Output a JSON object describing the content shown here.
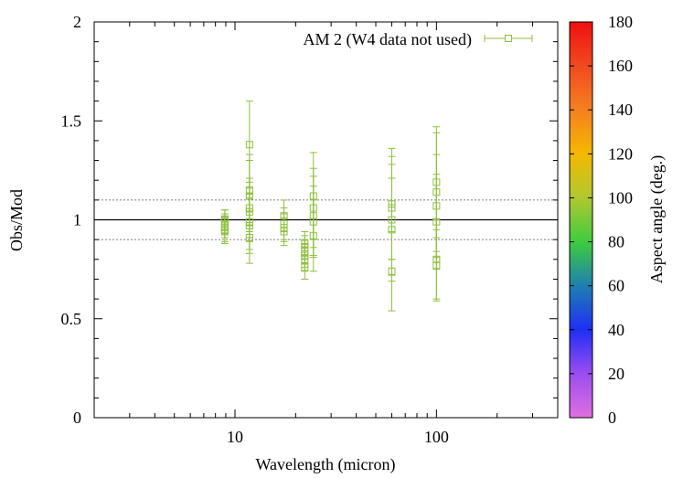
{
  "chart_data": {
    "type": "scatter",
    "title": "",
    "xlabel": "Wavelength (micron)",
    "ylabel": "Obs/Mod",
    "xscale": "log",
    "xlim": [
      2,
      400
    ],
    "ylim": [
      0,
      2
    ],
    "x_tick_labels": [
      {
        "value": 10,
        "label": "10"
      },
      {
        "value": 100,
        "label": "100"
      }
    ],
    "y_tick_labels": [
      {
        "value": 0,
        "label": "0"
      },
      {
        "value": 0.5,
        "label": "0.5"
      },
      {
        "value": 1,
        "label": "1"
      },
      {
        "value": 1.5,
        "label": "1.5"
      },
      {
        "value": 2,
        "label": "2"
      }
    ],
    "reference_lines": [
      {
        "y": 1.0,
        "style": "solid"
      },
      {
        "y": 1.1,
        "style": "dotted"
      },
      {
        "y": 0.9,
        "style": "dotted"
      }
    ],
    "legend_position": "top-right",
    "series": [
      {
        "name": "AM 2 (W4 data not used)",
        "color": "#8fbf3f",
        "marker": "open-square",
        "points": [
          {
            "x": 8.9,
            "y": 1.0,
            "err": 0.05
          },
          {
            "x": 8.9,
            "y": 0.98,
            "err": 0.05
          },
          {
            "x": 8.9,
            "y": 0.96,
            "err": 0.05
          },
          {
            "x": 8.9,
            "y": 0.94,
            "err": 0.05
          },
          {
            "x": 8.9,
            "y": 0.99,
            "err": 0.06
          },
          {
            "x": 8.9,
            "y": 0.95,
            "err": 0.07
          },
          {
            "x": 11.8,
            "y": 1.38,
            "err": 0.22
          },
          {
            "x": 11.8,
            "y": 1.15,
            "err": 0.18
          },
          {
            "x": 11.8,
            "y": 1.12,
            "err": 0.18
          },
          {
            "x": 11.8,
            "y": 1.06,
            "err": 0.15
          },
          {
            "x": 11.8,
            "y": 1.04,
            "err": 0.15
          },
          {
            "x": 11.8,
            "y": 0.99,
            "err": 0.14
          },
          {
            "x": 11.8,
            "y": 0.97,
            "err": 0.14
          },
          {
            "x": 11.8,
            "y": 0.91,
            "err": 0.13
          },
          {
            "x": 17.5,
            "y": 1.02,
            "err": 0.08
          },
          {
            "x": 17.5,
            "y": 0.98,
            "err": 0.08
          },
          {
            "x": 17.5,
            "y": 0.96,
            "err": 0.07
          },
          {
            "x": 17.5,
            "y": 0.94,
            "err": 0.07
          },
          {
            "x": 22.2,
            "y": 0.88,
            "err": 0.06
          },
          {
            "x": 22.2,
            "y": 0.86,
            "err": 0.06
          },
          {
            "x": 22.2,
            "y": 0.84,
            "err": 0.06
          },
          {
            "x": 22.2,
            "y": 0.82,
            "err": 0.06
          },
          {
            "x": 22.2,
            "y": 0.8,
            "err": 0.06
          },
          {
            "x": 22.2,
            "y": 0.76,
            "err": 0.06
          },
          {
            "x": 24.5,
            "y": 1.12,
            "err": 0.22
          },
          {
            "x": 24.5,
            "y": 1.06,
            "err": 0.2
          },
          {
            "x": 24.5,
            "y": 1.02,
            "err": 0.2
          },
          {
            "x": 24.5,
            "y": 0.99,
            "err": 0.18
          },
          {
            "x": 24.5,
            "y": 0.92,
            "err": 0.18
          },
          {
            "x": 60,
            "y": 1.08,
            "err": 0.28
          },
          {
            "x": 60,
            "y": 1.06,
            "err": 0.26
          },
          {
            "x": 60,
            "y": 1.0,
            "err": 0.28
          },
          {
            "x": 60,
            "y": 0.95,
            "err": 0.26
          },
          {
            "x": 60,
            "y": 0.74,
            "err": 0.2
          },
          {
            "x": 100,
            "y": 1.19,
            "err": 0.28
          },
          {
            "x": 100,
            "y": 1.14,
            "err": 0.3
          },
          {
            "x": 100,
            "y": 1.07,
            "err": 0.26
          },
          {
            "x": 100,
            "y": 0.99,
            "err": 0.24
          },
          {
            "x": 100,
            "y": 0.8,
            "err": 0.2
          },
          {
            "x": 100,
            "y": 0.77,
            "err": 0.18
          }
        ]
      }
    ],
    "colorbar": {
      "label": "Aspect angle (deg.)",
      "min": 0,
      "max": 180,
      "tick_labels": [
        "0",
        "20",
        "40",
        "60",
        "80",
        "100",
        "120",
        "140",
        "160",
        "180"
      ],
      "gradient": [
        {
          "value": 0,
          "color": "#e070e0"
        },
        {
          "value": 20,
          "color": "#9b4df0"
        },
        {
          "value": 40,
          "color": "#1e2ff5"
        },
        {
          "value": 60,
          "color": "#1f7fb0"
        },
        {
          "value": 80,
          "color": "#3ecc3e"
        },
        {
          "value": 100,
          "color": "#b0c830"
        },
        {
          "value": 120,
          "color": "#f5b800"
        },
        {
          "value": 140,
          "color": "#f58020"
        },
        {
          "value": 160,
          "color": "#f04a20"
        },
        {
          "value": 180,
          "color": "#f01010"
        }
      ]
    }
  }
}
